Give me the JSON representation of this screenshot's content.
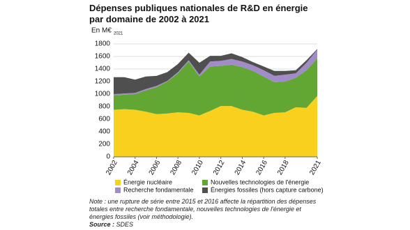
{
  "chart_data": {
    "type": "stacked-area",
    "title": "Dépenses publiques nationales de R&D en énergie par domaine de 2002 à 2021",
    "y_label": "En M€",
    "y_label_sub": "2021",
    "x": [
      2002,
      2003,
      2004,
      2005,
      2006,
      2007,
      2008,
      2009,
      2010,
      2011,
      2012,
      2013,
      2014,
      2015,
      2016,
      2017,
      2018,
      2019,
      2020,
      2021
    ],
    "xlim": [
      2002,
      2021
    ],
    "xticks": [
      2002,
      2004,
      2006,
      2008,
      2010,
      2012,
      2014,
      2016,
      2018,
      2021
    ],
    "ylim": [
      0,
      1800
    ],
    "yticks": [
      0,
      200,
      400,
      600,
      800,
      1000,
      1200,
      1400,
      1600,
      1800
    ],
    "grid": true,
    "series": [
      {
        "name": "Énergie nucléaire",
        "color": "#f9d01e",
        "values": [
          750,
          760,
          750,
          720,
          680,
          690,
          710,
          700,
          660,
          730,
          810,
          810,
          750,
          720,
          660,
          700,
          710,
          790,
          780,
          970
        ]
      },
      {
        "name": "Nouvelles technologies de l'énergie",
        "color": "#62a733",
        "values": [
          230,
          230,
          250,
          340,
          430,
          510,
          620,
          820,
          620,
          710,
          640,
          660,
          680,
          650,
          620,
          490,
          490,
          470,
          600,
          600
        ]
      },
      {
        "name": "Recherche fondamentale",
        "color": "#a18cc8",
        "values": [
          20,
          20,
          20,
          20,
          20,
          10,
          20,
          20,
          30,
          80,
          80,
          90,
          90,
          90,
          100,
          100,
          110,
          70,
          120,
          140
        ]
      },
      {
        "name": "Énergies fossiles (hors capture carbone)",
        "color": "#4f4f4f",
        "values": [
          270,
          260,
          210,
          200,
          160,
          140,
          130,
          120,
          190,
          90,
          80,
          90,
          70,
          50,
          60,
          80,
          60,
          50,
          40,
          10
        ]
      }
    ],
    "legend_columns": 2,
    "note": "Note : une rupture de série entre 2015 et 2016 affecte la répartition des dépenses totales entre recherche fondamentale, nouvelles technologies de l'énergie et énergies fossiles (voir méthodologie).",
    "source_label": "Source :",
    "source": "SDES"
  }
}
